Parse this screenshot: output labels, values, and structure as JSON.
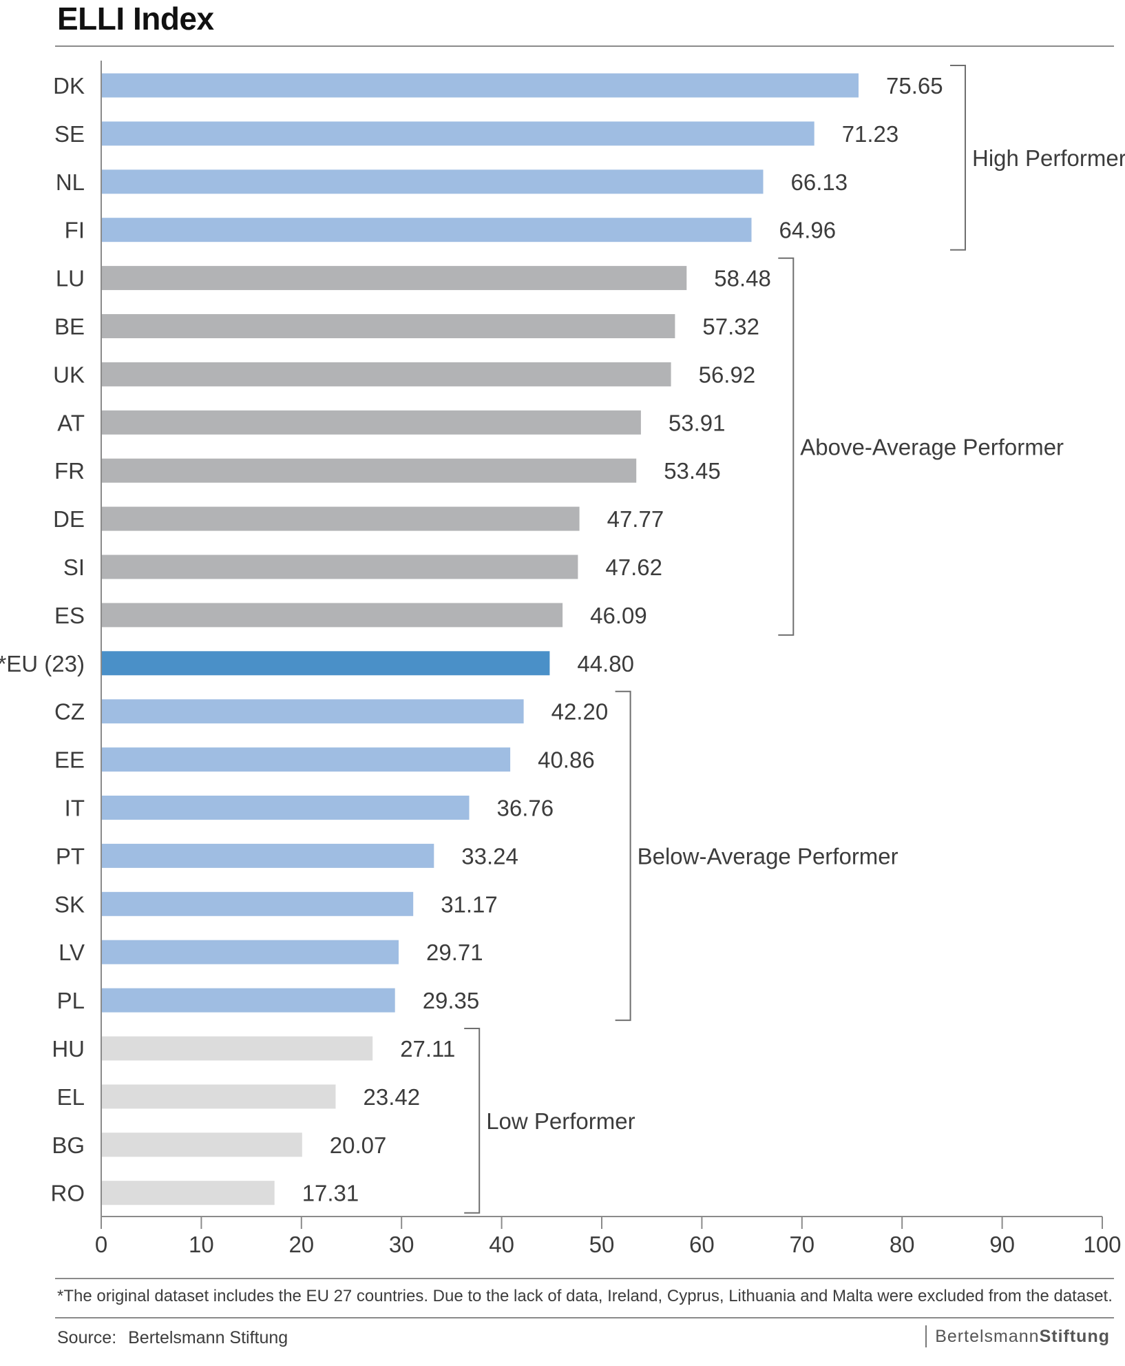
{
  "chart_data": {
    "type": "bar",
    "orientation": "horizontal",
    "title": "ELLI Index",
    "categories": [
      "DK",
      "SE",
      "NL",
      "FI",
      "LU",
      "BE",
      "UK",
      "AT",
      "FR",
      "DE",
      "SI",
      "ES",
      "*EU (23)",
      "CZ",
      "EE",
      "IT",
      "PT",
      "SK",
      "LV",
      "PL",
      "HU",
      "EL",
      "BG",
      "RO"
    ],
    "values": [
      75.65,
      71.23,
      66.13,
      64.96,
      58.48,
      57.32,
      56.92,
      53.91,
      53.45,
      47.77,
      47.62,
      46.09,
      44.8,
      42.2,
      40.86,
      36.76,
      33.24,
      31.17,
      29.71,
      29.35,
      27.11,
      23.42,
      20.07,
      17.31
    ],
    "value_labels": [
      "75.65",
      "71.23",
      "66.13",
      "64.96",
      "58.48",
      "57.32",
      "56.92",
      "53.91",
      "53.45",
      "47.77",
      "47.62",
      "46.09",
      "44.80",
      "42.20",
      "40.86",
      "36.76",
      "33.24",
      "31.17",
      "29.71",
      "29.35",
      "27.11",
      "23.42",
      "20.07",
      "17.31"
    ],
    "groups": [
      {
        "label": "High Performer",
        "start": 0,
        "end": 3,
        "color": "#9fbde2"
      },
      {
        "label": "Above-Average Performer",
        "start": 4,
        "end": 11,
        "color": "#b2b3b5"
      },
      {
        "label": "Below-Average Performer",
        "start": 13,
        "end": 19,
        "color": "#9fbde2"
      },
      {
        "label": "Low Performer",
        "start": 20,
        "end": 23,
        "color": "#dcdcdc"
      }
    ],
    "highlight": {
      "index": 12,
      "color": "#4a90c8"
    },
    "xlim": [
      0,
      100
    ],
    "xticks": [
      0,
      10,
      20,
      30,
      40,
      50,
      60,
      70,
      80,
      90,
      100
    ],
    "xlabel": "",
    "ylabel": "",
    "grid": false
  },
  "footnote": "*The original dataset includes the EU 27 countries. Due to the lack of data, Ireland, Cyprus, Lithuania and Malta were excluded from the dataset.",
  "source": {
    "label": "Source:",
    "value": "Bertelsmann Stiftung"
  },
  "logo": {
    "part1": "Bertelsmann",
    "part2": "Stiftung"
  },
  "colors": {
    "axis": "#8a8a8a",
    "text": "#3c3c3c",
    "bracket": "#6e6e6e"
  }
}
